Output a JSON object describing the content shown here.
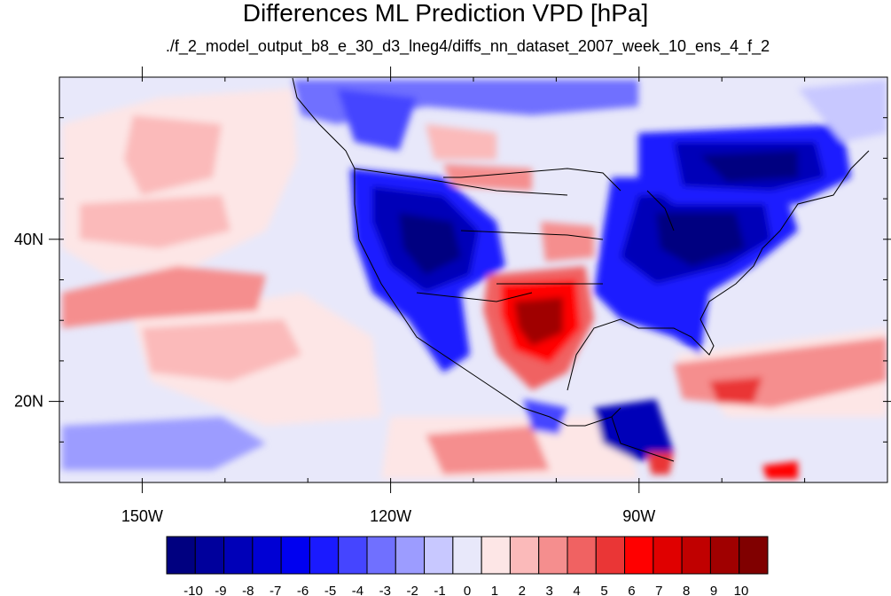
{
  "chart_data": {
    "type": "heatmap",
    "title": "Differences ML Prediction VPD [hPa]",
    "subtitle": "./f_2_model_output_b8_e_30_d3_lneg4/diffs_nn_dataset_2007_week_10_ens_4_f_2",
    "xlabel": "",
    "ylabel": "",
    "x_range_deg": [
      -160,
      -60
    ],
    "y_range_deg": [
      10,
      60
    ],
    "x_ticks": [
      {
        "label": "150W",
        "value": -150
      },
      {
        "label": "120W",
        "value": -120
      },
      {
        "label": "90W",
        "value": -90
      }
    ],
    "y_ticks": [
      {
        "label": "40N",
        "value": 40
      },
      {
        "label": "20N",
        "value": 20
      }
    ],
    "colorbar": {
      "labels": [
        "-10",
        "-9",
        "-8",
        "-7",
        "-6",
        "-5",
        "-4",
        "-3",
        "-2",
        "-1",
        "0",
        "1",
        "2",
        "3",
        "4",
        "5",
        "6",
        "7",
        "8",
        "9",
        "10"
      ],
      "colors": [
        "#000080",
        "#00009c",
        "#0000b8",
        "#0000d4",
        "#0000f0",
        "#1a1aff",
        "#4545ff",
        "#7070ff",
        "#9c9cff",
        "#c8c8ff",
        "#e8e8fa",
        "#fde6e6",
        "#fbbaba",
        "#f58e8e",
        "#f06262",
        "#ea3636",
        "#ff0000",
        "#e00000",
        "#c00000",
        "#a00000",
        "#800000"
      ]
    },
    "regions": [
      {
        "name": "western US negative",
        "lon": -114,
        "lat": 40,
        "value": -9
      },
      {
        "name": "eastern US negative",
        "lon": -84,
        "lat": 41,
        "value": -9
      },
      {
        "name": "eastern Canada negative",
        "lon": -75,
        "lat": 51,
        "value": -9
      },
      {
        "name": "Texas positive",
        "lon": -102,
        "lat": 30,
        "value": 8
      },
      {
        "name": "Kansas positive",
        "lon": -100,
        "lat": 37,
        "value": 4
      },
      {
        "name": "Central America negative",
        "lon": -90,
        "lat": 15,
        "value": -7
      },
      {
        "name": "Pacific positive band",
        "lon": -145,
        "lat": 36,
        "value": 2
      },
      {
        "name": "Atlantic positive band",
        "lon": -72,
        "lat": 22,
        "value": 4
      }
    ]
  }
}
